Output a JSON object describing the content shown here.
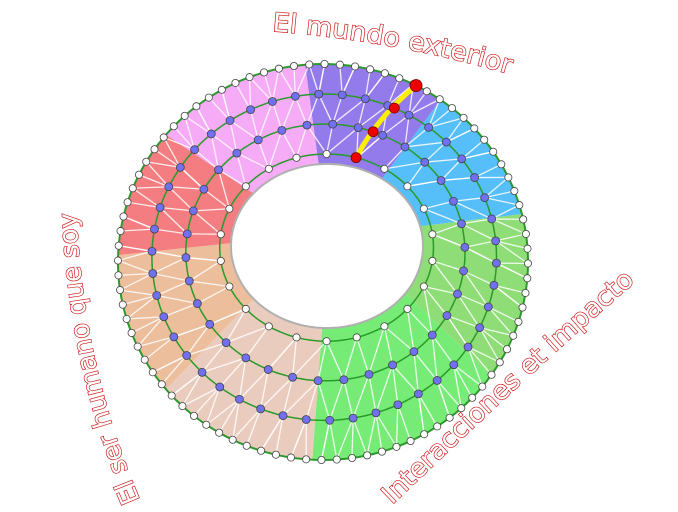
{
  "labels": {
    "top": "El mundo exterior",
    "right": "Interacciones et impacto",
    "left": "El ser humano que soy"
  },
  "colors": {
    "segments": [
      "#8a70ea",
      "#48b8f8",
      "#86da6a",
      "#6aea6a",
      "#e8c8b8",
      "#eab894",
      "#f27276",
      "#f4a4f4"
    ],
    "ring_line": "#2a9a2a",
    "inner_node": "#ffffff",
    "mid_node": "#7070f0",
    "highlight_node": "#ee0000",
    "highlight_path": "#ffee00",
    "label_stroke": "#cc1010"
  }
}
